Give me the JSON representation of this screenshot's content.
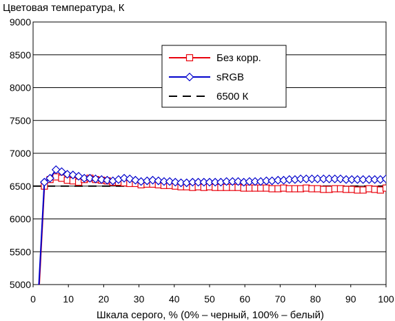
{
  "chart_data": {
    "type": "line",
    "title": "Цветовая температура, К",
    "xlabel": "Шкала серого, % (0% – черный, 100% – белый)",
    "ylabel": "",
    "xlim": [
      0,
      100
    ],
    "ylim": [
      5000,
      9000
    ],
    "xticks": [
      0,
      10,
      20,
      30,
      40,
      50,
      60,
      70,
      80,
      90,
      100
    ],
    "yticks": [
      5000,
      5500,
      6000,
      6500,
      7000,
      7500,
      8000,
      8500,
      9000
    ],
    "grid": "horizontal",
    "legend_position": "top-center",
    "series": [
      {
        "name": "Без корр.",
        "color": "#e8000b",
        "marker": "square",
        "x": [
          1.6,
          3.2,
          4.8,
          6.5,
          8.1,
          9.7,
          11.3,
          12.9,
          14.5,
          16.1,
          17.7,
          19.4,
          21.0,
          22.6,
          24.2,
          25.8,
          27.4,
          29.0,
          30.6,
          32.3,
          33.9,
          35.5,
          37.1,
          38.7,
          40.3,
          41.9,
          43.5,
          45.2,
          46.8,
          48.4,
          50.0,
          51.6,
          53.2,
          54.8,
          56.5,
          58.1,
          59.7,
          61.3,
          62.9,
          64.5,
          66.1,
          67.7,
          69.4,
          71.0,
          72.6,
          74.2,
          75.8,
          77.4,
          79.0,
          80.6,
          82.3,
          83.9,
          85.5,
          87.1,
          88.7,
          90.3,
          91.9,
          93.5,
          95.2,
          96.8,
          98.4,
          100
        ],
        "values": [
          4850,
          6500,
          6600,
          6640,
          6620,
          6590,
          6580,
          6560,
          6600,
          6620,
          6600,
          6590,
          6580,
          6560,
          6560,
          6550,
          6540,
          6540,
          6520,
          6530,
          6530,
          6520,
          6510,
          6510,
          6500,
          6490,
          6490,
          6480,
          6490,
          6480,
          6490,
          6480,
          6480,
          6480,
          6480,
          6480,
          6470,
          6470,
          6470,
          6470,
          6470,
          6460,
          6460,
          6470,
          6460,
          6460,
          6460,
          6470,
          6460,
          6460,
          6450,
          6450,
          6460,
          6460,
          6450,
          6450,
          6440,
          6440,
          6460,
          6450,
          6440,
          6470
        ]
      },
      {
        "name": "sRGB",
        "color": "#0000cc",
        "marker": "diamond",
        "x": [
          1.6,
          3.2,
          4.8,
          6.5,
          8.1,
          9.7,
          11.3,
          12.9,
          14.5,
          16.1,
          17.7,
          19.4,
          21.0,
          22.6,
          24.2,
          25.8,
          27.4,
          29.0,
          30.6,
          32.3,
          33.9,
          35.5,
          37.1,
          38.7,
          40.3,
          41.9,
          43.5,
          45.2,
          46.8,
          48.4,
          50.0,
          51.6,
          53.2,
          54.8,
          56.5,
          58.1,
          59.7,
          61.3,
          62.9,
          64.5,
          66.1,
          67.7,
          69.4,
          71.0,
          72.6,
          74.2,
          75.8,
          77.4,
          79.0,
          80.6,
          82.3,
          83.9,
          85.5,
          87.1,
          88.7,
          90.3,
          91.9,
          93.5,
          95.2,
          96.8,
          98.4,
          100
        ],
        "values": [
          4950,
          6560,
          6620,
          6750,
          6720,
          6680,
          6670,
          6650,
          6620,
          6620,
          6610,
          6600,
          6590,
          6580,
          6600,
          6620,
          6610,
          6590,
          6570,
          6580,
          6590,
          6580,
          6570,
          6570,
          6560,
          6550,
          6550,
          6560,
          6560,
          6560,
          6560,
          6560,
          6560,
          6570,
          6570,
          6570,
          6560,
          6570,
          6570,
          6570,
          6580,
          6580,
          6590,
          6590,
          6600,
          6600,
          6610,
          6610,
          6610,
          6610,
          6610,
          6610,
          6610,
          6610,
          6600,
          6600,
          6600,
          6600,
          6600,
          6600,
          6600,
          6610
        ]
      },
      {
        "name": "6500 К",
        "color": "#000000",
        "marker": "none",
        "dashed": true,
        "x": [
          0,
          100
        ],
        "values": [
          6500,
          6500
        ]
      }
    ]
  }
}
